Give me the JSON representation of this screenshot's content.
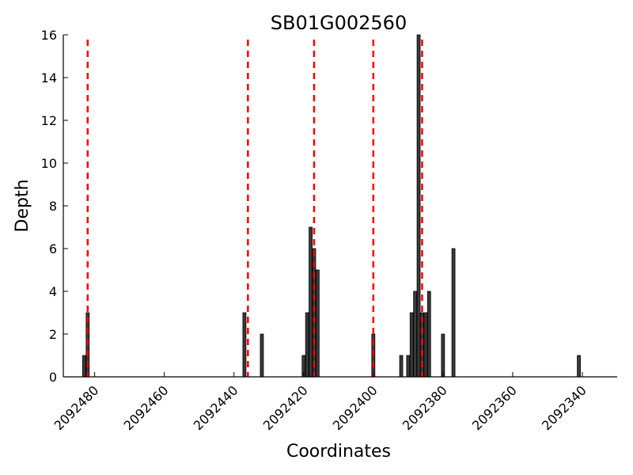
{
  "chart_data": {
    "type": "bar",
    "title": "SB01G002560",
    "xlabel": "Coordinates",
    "ylabel": "Depth",
    "x_inverted": true,
    "xlim": [
      2092489,
      2092330
    ],
    "ylim": [
      0,
      16
    ],
    "x_ticks": [
      2092480,
      2092460,
      2092440,
      2092420,
      2092400,
      2092380,
      2092360,
      2092340
    ],
    "y_ticks": [
      0,
      2,
      4,
      6,
      8,
      10,
      12,
      14,
      16
    ],
    "grid": false,
    "bar_color": "#3a3a3a",
    "line_color": "#ff0000",
    "series": [
      {
        "x": [
          2092483,
          2092482,
          2092437,
          2092432,
          2092420,
          2092419,
          2092418,
          2092417,
          2092416,
          2092400,
          2092392,
          2092390,
          2092389,
          2092388,
          2092387,
          2092386,
          2092385,
          2092384,
          2092383,
          2092380,
          2092377,
          2092341
        ],
        "values": [
          1,
          3,
          3,
          2,
          1,
          3,
          7,
          6,
          5,
          2,
          1,
          1,
          3,
          4,
          16,
          3,
          3,
          4,
          0,
          2,
          6,
          1
        ]
      }
    ],
    "vertical_lines": [
      2092482,
      2092436,
      2092417,
      2092400,
      2092386
    ]
  }
}
